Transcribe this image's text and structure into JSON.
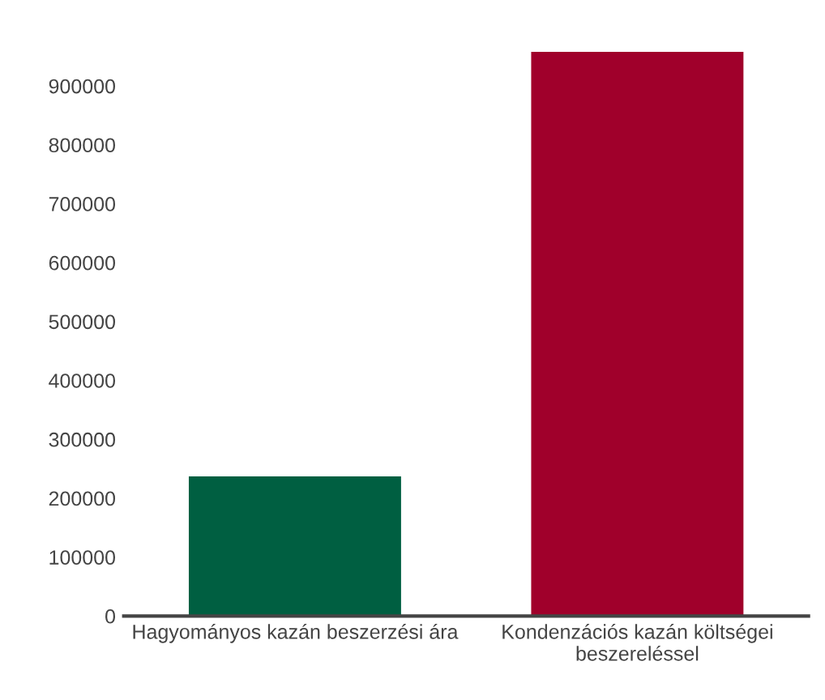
{
  "chart_data": {
    "type": "bar",
    "categories": [
      "Hagyományos kazán beszerzési ára",
      "Kondenzációs kazán költségei beszereléssel"
    ],
    "values": [
      237000,
      958000
    ],
    "colors": [
      "#005f41",
      "#a0002b"
    ],
    "ylim": [
      0,
      958000
    ],
    "yticks": [
      0,
      100000,
      200000,
      300000,
      400000,
      500000,
      600000,
      700000,
      800000,
      900000
    ],
    "grid": false,
    "legend": false
  }
}
